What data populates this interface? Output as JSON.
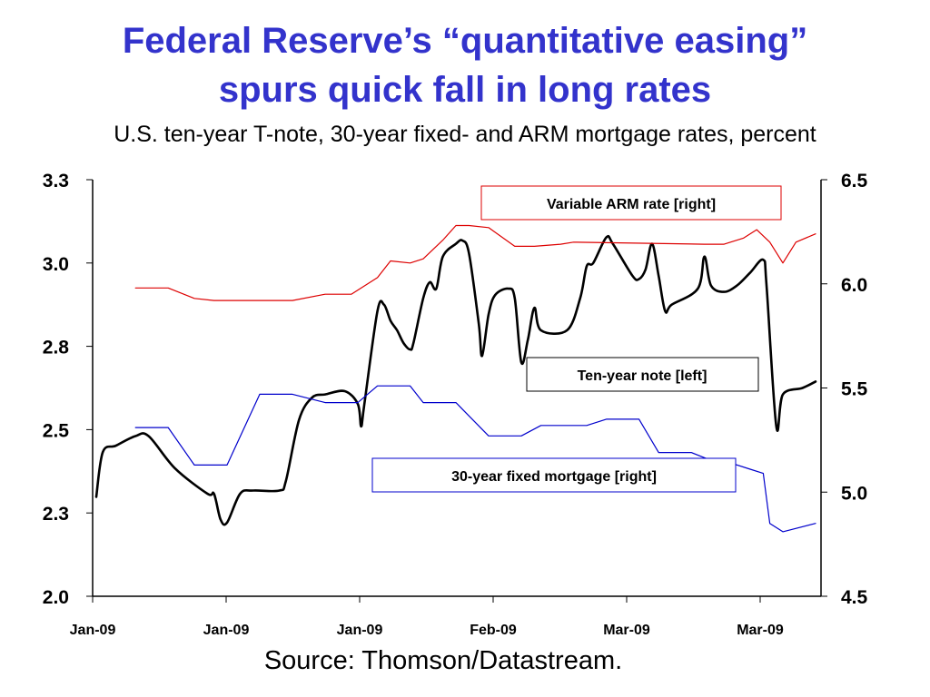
{
  "title_line1": "Federal Reserve’s “quantitative easing”",
  "title_line2": "spurs quick fall in long rates",
  "subtitle": "U.S. ten-year T-note, 30-year fixed- and ARM mortgage rates, percent",
  "source": "Source: Thomson/Datastream.",
  "chart_data": {
    "type": "line",
    "left_axis": {
      "ylim": [
        2.0,
        3.3
      ],
      "ticks": [
        "2.0",
        "2.3",
        "2.5",
        "2.8",
        "3.0",
        "3.3"
      ]
    },
    "right_axis": {
      "ylim": [
        4.5,
        6.5
      ],
      "ticks": [
        "4.5",
        "5.0",
        "5.5",
        "6.0",
        "6.5"
      ]
    },
    "x_tick_labels": [
      "Jan-09",
      "Jan-09",
      "Jan-09",
      "Feb-09",
      "Mar-09",
      "Mar-09"
    ],
    "grid": false,
    "series": [
      {
        "name": "Ten-year note [left]",
        "axis": "left",
        "color": "#000000",
        "points": [
          [
            0,
            2.31
          ],
          [
            1,
            2.45
          ],
          [
            3,
            2.47
          ],
          [
            6,
            2.5
          ],
          [
            8,
            2.5
          ],
          [
            12,
            2.4
          ],
          [
            17,
            2.32
          ],
          [
            18,
            2.32
          ],
          [
            19,
            2.24
          ],
          [
            20,
            2.23
          ],
          [
            22,
            2.32
          ],
          [
            24,
            2.33
          ],
          [
            28,
            2.33
          ],
          [
            29,
            2.36
          ],
          [
            31,
            2.55
          ],
          [
            33,
            2.62
          ],
          [
            35,
            2.63
          ],
          [
            38,
            2.64
          ],
          [
            40,
            2.6
          ],
          [
            40.5,
            2.53
          ],
          [
            41,
            2.6
          ],
          [
            43,
            2.89
          ],
          [
            44,
            2.91
          ],
          [
            45,
            2.86
          ],
          [
            46,
            2.83
          ],
          [
            47,
            2.79
          ],
          [
            48,
            2.77
          ],
          [
            48.5,
            2.79
          ],
          [
            50,
            2.93
          ],
          [
            51,
            2.98
          ],
          [
            52,
            2.96
          ],
          [
            53,
            3.06
          ],
          [
            55,
            3.1
          ],
          [
            56,
            3.11
          ],
          [
            57,
            3.07
          ],
          [
            58.5,
            2.85
          ],
          [
            59,
            2.75
          ],
          [
            60,
            2.88
          ],
          [
            61,
            2.94
          ],
          [
            63,
            2.96
          ],
          [
            64,
            2.93
          ],
          [
            65,
            2.73
          ],
          [
            66,
            2.8
          ],
          [
            67,
            2.9
          ],
          [
            68,
            2.83
          ],
          [
            72,
            2.83
          ],
          [
            74,
            2.93
          ],
          [
            75,
            3.03
          ],
          [
            76,
            3.04
          ],
          [
            78,
            3.12
          ],
          [
            79,
            3.1
          ],
          [
            82,
            3.0
          ],
          [
            83,
            2.99
          ],
          [
            84,
            3.02
          ],
          [
            85,
            3.1
          ],
          [
            86,
            3.0
          ],
          [
            87,
            2.89
          ],
          [
            88,
            2.91
          ],
          [
            92,
            2.96
          ],
          [
            93,
            3.06
          ],
          [
            94,
            2.97
          ],
          [
            96,
            2.95
          ],
          [
            98,
            2.97
          ],
          [
            100,
            3.01
          ],
          [
            102,
            3.05
          ],
          [
            102.5,
            2.97
          ],
          [
            104,
            2.53
          ],
          [
            105,
            2.63
          ],
          [
            108,
            2.65
          ],
          [
            110,
            2.67
          ]
        ]
      },
      {
        "name": "Variable ARM rate [right]",
        "axis": "right",
        "color": "#dd0000",
        "points": [
          [
            6,
            5.98
          ],
          [
            11,
            5.98
          ],
          [
            15,
            5.93
          ],
          [
            18,
            5.92
          ],
          [
            30,
            5.92
          ],
          [
            35,
            5.95
          ],
          [
            39,
            5.95
          ],
          [
            43,
            6.03
          ],
          [
            45,
            6.11
          ],
          [
            48,
            6.1
          ],
          [
            50,
            6.12
          ],
          [
            53,
            6.21
          ],
          [
            55,
            6.28
          ],
          [
            57,
            6.28
          ],
          [
            60,
            6.27
          ],
          [
            64,
            6.18
          ],
          [
            67,
            6.18
          ],
          [
            71,
            6.19
          ],
          [
            73,
            6.2
          ],
          [
            93,
            6.19
          ],
          [
            96,
            6.19
          ],
          [
            99,
            6.22
          ],
          [
            101,
            6.26
          ],
          [
            103,
            6.2
          ],
          [
            105,
            6.1
          ],
          [
            107,
            6.2
          ],
          [
            110,
            6.24
          ]
        ]
      },
      {
        "name": "30-year fixed mortgage [right]",
        "axis": "right",
        "color": "#0000cc",
        "points": [
          [
            6,
            5.31
          ],
          [
            11,
            5.31
          ],
          [
            15,
            5.13
          ],
          [
            20,
            5.13
          ],
          [
            25,
            5.47
          ],
          [
            30,
            5.47
          ],
          [
            35,
            5.43
          ],
          [
            40,
            5.43
          ],
          [
            43,
            5.51
          ],
          [
            48,
            5.51
          ],
          [
            50,
            5.43
          ],
          [
            55,
            5.43
          ],
          [
            60,
            5.27
          ],
          [
            65,
            5.27
          ],
          [
            68,
            5.32
          ],
          [
            75,
            5.32
          ],
          [
            78,
            5.35
          ],
          [
            83,
            5.35
          ],
          [
            86,
            5.19
          ],
          [
            91,
            5.19
          ],
          [
            95,
            5.14
          ],
          [
            97,
            5.14
          ],
          [
            100,
            5.11
          ],
          [
            102,
            5.09
          ],
          [
            103,
            4.85
          ],
          [
            105,
            4.81
          ],
          [
            110,
            4.85
          ]
        ]
      }
    ],
    "x_domain": [
      0,
      110
    ]
  }
}
